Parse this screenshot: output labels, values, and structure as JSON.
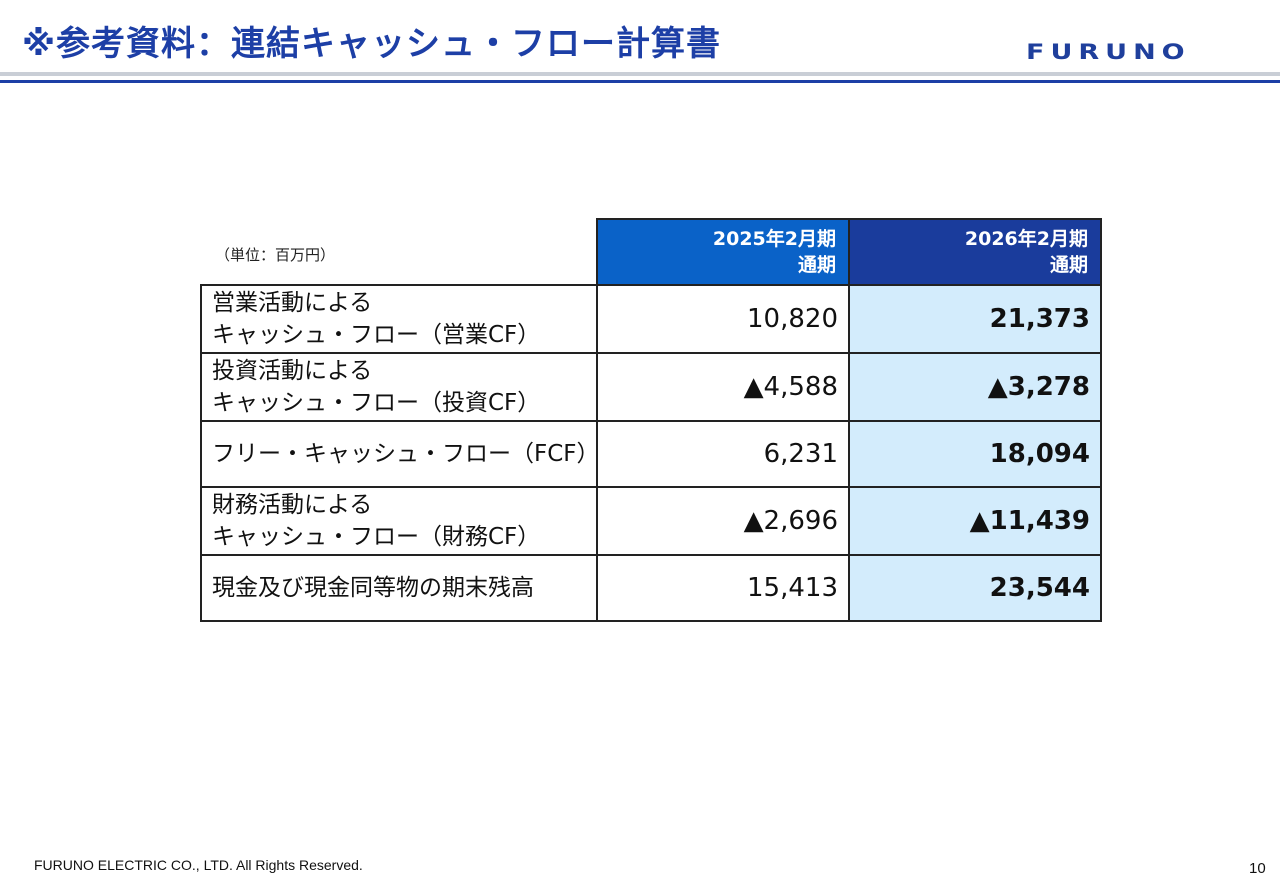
{
  "header": {
    "title": "※参考資料：連結キャッシュ・フロー計算書",
    "logo": "FURUNO"
  },
  "table": {
    "unit": "（単位：百万円）",
    "columns": [
      {
        "line1": "2025年2月期",
        "line2": "通期"
      },
      {
        "line1": "2026年2月期",
        "line2": "通期"
      }
    ],
    "rows": [
      {
        "label1": "営業活動による",
        "label2": "キャッシュ・フロー（営業CF）",
        "v2025": "10,820",
        "v2026": "21,373"
      },
      {
        "label1": "投資活動による",
        "label2": "キャッシュ・フロー（投資CF）",
        "v2025": "▲4,588",
        "v2026": "▲3,278"
      },
      {
        "label1": "フリー・キャッシュ・フロー（FCF）",
        "label2": "",
        "v2025": "6,231",
        "v2026": "18,094"
      },
      {
        "label1": "財務活動による",
        "label2": "キャッシュ・フロー（財務CF）",
        "v2025": "▲2,696",
        "v2026": "▲11,439"
      },
      {
        "label1": "現金及び現金同等物の期末残高",
        "label2": "",
        "v2025": "15,413",
        "v2026": "23,544"
      }
    ]
  },
  "footer": {
    "copyright": "FURUNO ELECTRIC CO., LTD. All Rights Reserved.",
    "page_number": "10"
  },
  "colors": {
    "title": "#1d3fa6",
    "header_2025": "#0a62c8",
    "header_2026": "#1a3c9c",
    "highlight": "#d3ecfc"
  }
}
